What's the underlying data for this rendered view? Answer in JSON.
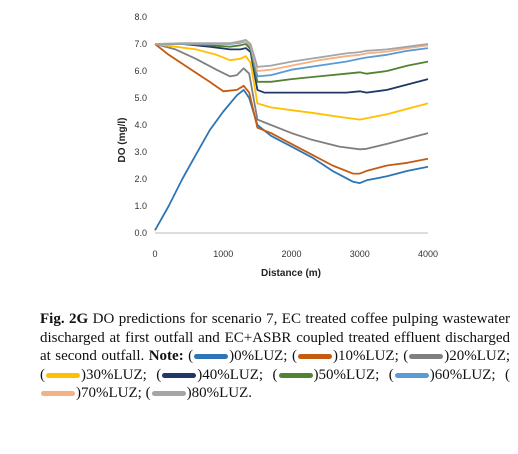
{
  "chart_data": {
    "type": "line",
    "xlabel": "Distance (m)",
    "ylabel": "DO (mg/l)",
    "xlim": [
      0,
      4000
    ],
    "ylim": [
      0,
      8
    ],
    "xticks": [
      "0",
      "1000",
      "2000",
      "3000",
      "4000"
    ],
    "yticks": [
      "0.0",
      "1.0",
      "2.0",
      "3.0",
      "4.0",
      "5.0",
      "6.0",
      "7.0",
      "8.0"
    ],
    "grid": false,
    "legend": "in caption",
    "series": [
      {
        "name": "0%LUZ",
        "color": "#2e75b6",
        "points": [
          [
            0,
            0.1
          ],
          [
            200,
            1.0
          ],
          [
            400,
            2.0
          ],
          [
            600,
            2.9
          ],
          [
            800,
            3.8
          ],
          [
            1000,
            4.5
          ],
          [
            1200,
            5.1
          ],
          [
            1300,
            5.3
          ],
          [
            1380,
            5.0
          ],
          [
            1500,
            4.0
          ],
          [
            1700,
            3.6
          ],
          [
            2000,
            3.2
          ],
          [
            2300,
            2.8
          ],
          [
            2600,
            2.3
          ],
          [
            2900,
            1.9
          ],
          [
            3000,
            1.85
          ],
          [
            3100,
            1.95
          ],
          [
            3400,
            2.1
          ],
          [
            3700,
            2.3
          ],
          [
            4000,
            2.45
          ]
        ]
      },
      {
        "name": "10%LUZ",
        "color": "#c55a11",
        "points": [
          [
            0,
            7.0
          ],
          [
            200,
            6.6
          ],
          [
            500,
            6.1
          ],
          [
            800,
            5.6
          ],
          [
            1000,
            5.25
          ],
          [
            1200,
            5.3
          ],
          [
            1300,
            5.45
          ],
          [
            1380,
            5.2
          ],
          [
            1500,
            3.9
          ],
          [
            1700,
            3.7
          ],
          [
            2000,
            3.3
          ],
          [
            2300,
            2.9
          ],
          [
            2600,
            2.5
          ],
          [
            2900,
            2.2
          ],
          [
            3000,
            2.2
          ],
          [
            3100,
            2.3
          ],
          [
            3400,
            2.5
          ],
          [
            3700,
            2.6
          ],
          [
            4000,
            2.75
          ]
        ]
      },
      {
        "name": "20%LUZ",
        "color": "#7f7f7f",
        "points": [
          [
            0,
            7.0
          ],
          [
            300,
            6.8
          ],
          [
            600,
            6.45
          ],
          [
            900,
            6.05
          ],
          [
            1100,
            5.8
          ],
          [
            1200,
            5.85
          ],
          [
            1300,
            6.1
          ],
          [
            1380,
            5.9
          ],
          [
            1500,
            4.2
          ],
          [
            1700,
            4.0
          ],
          [
            2000,
            3.7
          ],
          [
            2300,
            3.45
          ],
          [
            2700,
            3.2
          ],
          [
            3000,
            3.1
          ],
          [
            3100,
            3.12
          ],
          [
            3400,
            3.3
          ],
          [
            3700,
            3.5
          ],
          [
            4000,
            3.7
          ]
        ]
      },
      {
        "name": "30%LUZ",
        "color": "#ffc000",
        "points": [
          [
            0,
            7.0
          ],
          [
            300,
            6.9
          ],
          [
            600,
            6.8
          ],
          [
            900,
            6.6
          ],
          [
            1100,
            6.4
          ],
          [
            1250,
            6.45
          ],
          [
            1330,
            6.55
          ],
          [
            1400,
            6.3
          ],
          [
            1500,
            4.8
          ],
          [
            1700,
            4.65
          ],
          [
            2000,
            4.55
          ],
          [
            2300,
            4.45
          ],
          [
            2700,
            4.3
          ],
          [
            3000,
            4.2
          ],
          [
            3100,
            4.25
          ],
          [
            3400,
            4.4
          ],
          [
            3700,
            4.6
          ],
          [
            4000,
            4.8
          ]
        ]
      },
      {
        "name": "40%LUZ",
        "color": "#1f3864",
        "points": [
          [
            0,
            7.0
          ],
          [
            400,
            7.0
          ],
          [
            800,
            6.9
          ],
          [
            1100,
            6.8
          ],
          [
            1250,
            6.8
          ],
          [
            1330,
            6.85
          ],
          [
            1400,
            6.7
          ],
          [
            1500,
            5.3
          ],
          [
            1600,
            5.2
          ],
          [
            2000,
            5.2
          ],
          [
            2400,
            5.2
          ],
          [
            2800,
            5.2
          ],
          [
            3000,
            5.25
          ],
          [
            3100,
            5.2
          ],
          [
            3400,
            5.3
          ],
          [
            3700,
            5.5
          ],
          [
            4000,
            5.7
          ]
        ]
      },
      {
        "name": "50%LUZ",
        "color": "#548235",
        "points": [
          [
            0,
            7.0
          ],
          [
            400,
            7.0
          ],
          [
            800,
            6.95
          ],
          [
            1100,
            6.9
          ],
          [
            1250,
            6.95
          ],
          [
            1330,
            7.0
          ],
          [
            1400,
            6.8
          ],
          [
            1500,
            5.6
          ],
          [
            1700,
            5.6
          ],
          [
            2000,
            5.7
          ],
          [
            2400,
            5.8
          ],
          [
            2800,
            5.9
          ],
          [
            3000,
            5.95
          ],
          [
            3100,
            5.9
          ],
          [
            3400,
            6.0
          ],
          [
            3700,
            6.2
          ],
          [
            4000,
            6.35
          ]
        ]
      },
      {
        "name": "60%LUZ",
        "color": "#5b9bd5",
        "points": [
          [
            0,
            7.0
          ],
          [
            400,
            7.0
          ],
          [
            800,
            7.0
          ],
          [
            1100,
            7.0
          ],
          [
            1250,
            7.05
          ],
          [
            1330,
            7.1
          ],
          [
            1400,
            6.9
          ],
          [
            1500,
            5.8
          ],
          [
            1700,
            5.85
          ],
          [
            2000,
            6.05
          ],
          [
            2400,
            6.2
          ],
          [
            2800,
            6.35
          ],
          [
            3000,
            6.45
          ],
          [
            3100,
            6.5
          ],
          [
            3400,
            6.6
          ],
          [
            3700,
            6.75
          ],
          [
            4000,
            6.85
          ]
        ]
      },
      {
        "name": "70%LUZ",
        "color": "#f4b183",
        "points": [
          [
            0,
            7.0
          ],
          [
            400,
            7.02
          ],
          [
            800,
            7.02
          ],
          [
            1100,
            7.02
          ],
          [
            1250,
            7.08
          ],
          [
            1330,
            7.12
          ],
          [
            1400,
            6.95
          ],
          [
            1500,
            6.0
          ],
          [
            1700,
            6.05
          ],
          [
            2000,
            6.2
          ],
          [
            2400,
            6.4
          ],
          [
            2800,
            6.55
          ],
          [
            3000,
            6.6
          ],
          [
            3100,
            6.65
          ],
          [
            3400,
            6.72
          ],
          [
            3700,
            6.85
          ],
          [
            4000,
            6.95
          ]
        ]
      },
      {
        "name": "80%LUZ",
        "color": "#a5a5a5",
        "points": [
          [
            0,
            7.0
          ],
          [
            400,
            7.03
          ],
          [
            800,
            7.03
          ],
          [
            1100,
            7.03
          ],
          [
            1250,
            7.1
          ],
          [
            1330,
            7.15
          ],
          [
            1400,
            7.0
          ],
          [
            1500,
            6.15
          ],
          [
            1700,
            6.2
          ],
          [
            2000,
            6.35
          ],
          [
            2400,
            6.5
          ],
          [
            2800,
            6.65
          ],
          [
            3000,
            6.7
          ],
          [
            3100,
            6.75
          ],
          [
            3400,
            6.8
          ],
          [
            3700,
            6.9
          ],
          [
            4000,
            7.0
          ]
        ]
      }
    ]
  },
  "caption": {
    "fig_label": "Fig. 2G",
    "text": " DO predictions for scenario 7, EC treated coffee pulping wastewater discharged at first outfall and EC+ASBR coupled treated effluent discharged at second outfall. ",
    "note_label": "Note:",
    "legend_items": [
      {
        "text": "0%LUZ;",
        "color": "#2e75b6"
      },
      {
        "text": "10%LUZ;",
        "color": "#c55a11"
      },
      {
        "text": "20%LUZ;",
        "color": "#7f7f7f"
      },
      {
        "text": "30%LUZ;",
        "color": "#ffc000"
      },
      {
        "text": "40%LUZ;",
        "color": "#1f3864"
      },
      {
        "text": "50%LUZ;",
        "color": "#548235"
      },
      {
        "text": "60%LUZ;",
        "color": "#5b9bd5"
      },
      {
        "text": "70%LUZ;",
        "color": "#f4b183"
      },
      {
        "text": "80%LUZ.",
        "color": "#a5a5a5"
      }
    ]
  }
}
